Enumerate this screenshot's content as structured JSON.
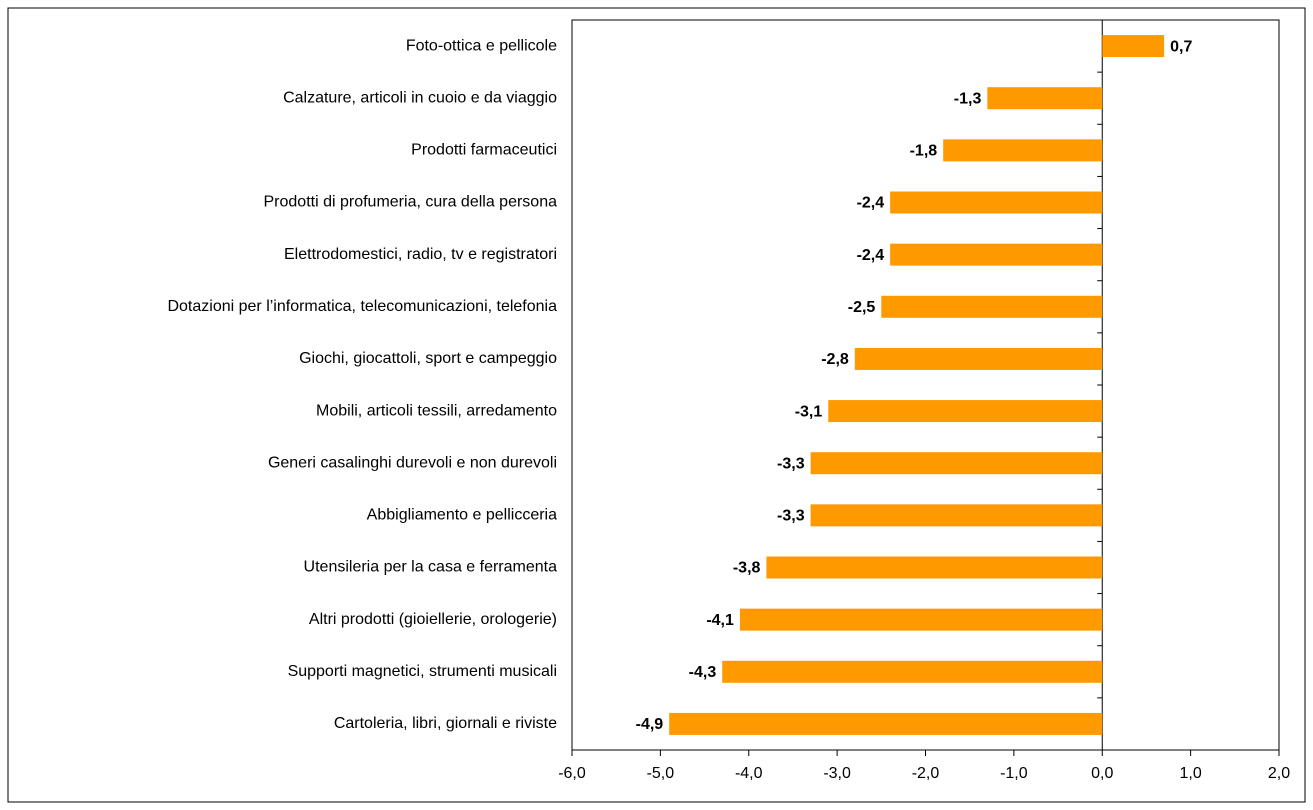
{
  "chart_data": {
    "type": "barh",
    "categories": [
      "Foto-ottica e pellicole",
      "Calzature, articoli in cuoio e da viaggio",
      "Prodotti farmaceutici",
      "Prodotti di profumeria, cura della persona",
      "Elettrodomestici, radio, tv e registratori",
      "Dotazioni per l’informatica, telecomunicazioni, telefonia",
      "Giochi, giocattoli, sport e campeggio",
      "Mobili, articoli tessili, arredamento",
      "Generi casalinghi durevoli e non durevoli",
      "Abbigliamento e pellicceria",
      "Utensileria per la casa e ferramenta",
      "Altri prodotti (gioiellerie, orologerie)",
      "Supporti magnetici, strumenti musicali",
      "Cartoleria, libri, giornali e riviste"
    ],
    "values": [
      0.7,
      -1.3,
      -1.8,
      -2.4,
      -2.4,
      -2.5,
      -2.8,
      -3.1,
      -3.3,
      -3.3,
      -3.8,
      -4.1,
      -4.3,
      -4.9
    ],
    "value_labels": [
      "0,7",
      "-1,3",
      "-1,8",
      "-2,4",
      "-2,4",
      "-2,5",
      "-2,8",
      "-3,1",
      "-3,3",
      "-3,3",
      "-3,8",
      "-4,1",
      "-4,3",
      "-4,9"
    ],
    "color": "#ff9900",
    "xlim": [
      -6,
      2
    ],
    "xticks": [
      {
        "value": -6,
        "label": "-6,0"
      },
      {
        "value": -5,
        "label": "-5,0"
      },
      {
        "value": -4,
        "label": "-4,0"
      },
      {
        "value": -3,
        "label": "-3,0"
      },
      {
        "value": -2,
        "label": "-2,0"
      },
      {
        "value": -1,
        "label": "-1,0"
      },
      {
        "value": 0,
        "label": "0,0"
      },
      {
        "value": 1,
        "label": "1,0"
      },
      {
        "value": 2,
        "label": "2,0"
      }
    ]
  }
}
